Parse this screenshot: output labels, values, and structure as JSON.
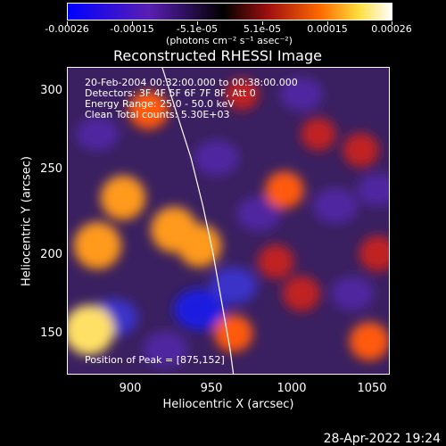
{
  "colorbar": {
    "tick_labels": [
      "-0.00026",
      "-0.00015",
      "-5.1e-05",
      "5.1e-05",
      "0.00015",
      "0.00026"
    ],
    "units_label": "(photons cm⁻² s⁻¹ asec⁻²)",
    "colors": [
      "#0000ff",
      "#5a1fb4",
      "#000000",
      "#a01010",
      "#ff6a00",
      "#ffdf40",
      "#ffffff"
    ]
  },
  "plot": {
    "title": "Reconstructed RHESSI Image",
    "info_lines": [
      "20-Feb-2004 00:32:00.000 to 00:38:00.000",
      "Detectors: 3F 4F 5F 6F 7F 8F, Att 0",
      "Energy Range: 25.0 - 50.0 keV",
      "Clean     Total counts: 5.30E+03"
    ],
    "peak_text": "Position of Peak = [875,152]"
  },
  "chart_data": {
    "type": "heatmap",
    "title": "Reconstructed RHESSI Image",
    "xlabel": "Heliocentric X (arcsec)",
    "ylabel": "Heliocentric Y (arcsec)",
    "xlim": [
      862,
      1052
    ],
    "ylim": [
      124,
      317
    ],
    "x_ticks": [
      900,
      950,
      1000,
      1050
    ],
    "y_ticks": [
      150,
      200,
      250,
      300
    ],
    "colorbar_range": [
      -0.00026,
      0.00026
    ],
    "peak_position": [
      875,
      152
    ],
    "hot_regions": [
      {
        "x": 875,
        "y": 152,
        "intensity": 1.0
      },
      {
        "x": 880,
        "y": 205,
        "intensity": 0.9
      },
      {
        "x": 925,
        "y": 215,
        "intensity": 0.85
      },
      {
        "x": 895,
        "y": 235,
        "intensity": 0.8
      },
      {
        "x": 940,
        "y": 205,
        "intensity": 0.75
      },
      {
        "x": 910,
        "y": 290,
        "intensity": 0.6
      },
      {
        "x": 990,
        "y": 240,
        "intensity": 0.55
      },
      {
        "x": 1000,
        "y": 175,
        "intensity": 0.5
      },
      {
        "x": 1040,
        "y": 145,
        "intensity": 0.6
      },
      {
        "x": 1045,
        "y": 200,
        "intensity": 0.5
      },
      {
        "x": 960,
        "y": 150,
        "intensity": 0.55
      },
      {
        "x": 985,
        "y": 195,
        "intensity": 0.45
      },
      {
        "x": 1010,
        "y": 275,
        "intensity": 0.4
      },
      {
        "x": 965,
        "y": 300,
        "intensity": 0.35
      },
      {
        "x": 1035,
        "y": 265,
        "intensity": 0.45
      }
    ],
    "cold_regions": [
      {
        "x": 940,
        "y": 165,
        "intensity": -0.9
      },
      {
        "x": 960,
        "y": 180,
        "intensity": -0.7
      },
      {
        "x": 950,
        "y": 260,
        "intensity": -0.6
      },
      {
        "x": 890,
        "y": 160,
        "intensity": -0.7
      },
      {
        "x": 1020,
        "y": 230,
        "intensity": -0.6
      },
      {
        "x": 1030,
        "y": 175,
        "intensity": -0.5
      },
      {
        "x": 975,
        "y": 225,
        "intensity": -0.55
      },
      {
        "x": 920,
        "y": 140,
        "intensity": -0.6
      },
      {
        "x": 1000,
        "y": 300,
        "intensity": -0.5
      },
      {
        "x": 880,
        "y": 275,
        "intensity": -0.5
      },
      {
        "x": 1045,
        "y": 240,
        "intensity": -0.45
      }
    ],
    "limb_curve": [
      [
        918,
        317
      ],
      [
        926,
        290
      ],
      [
        935,
        260
      ],
      [
        942,
        230
      ],
      [
        948,
        200
      ],
      [
        953,
        170
      ],
      [
        958,
        140
      ],
      [
        960,
        124
      ]
    ]
  },
  "timestamp": "28-Apr-2022 19:24"
}
